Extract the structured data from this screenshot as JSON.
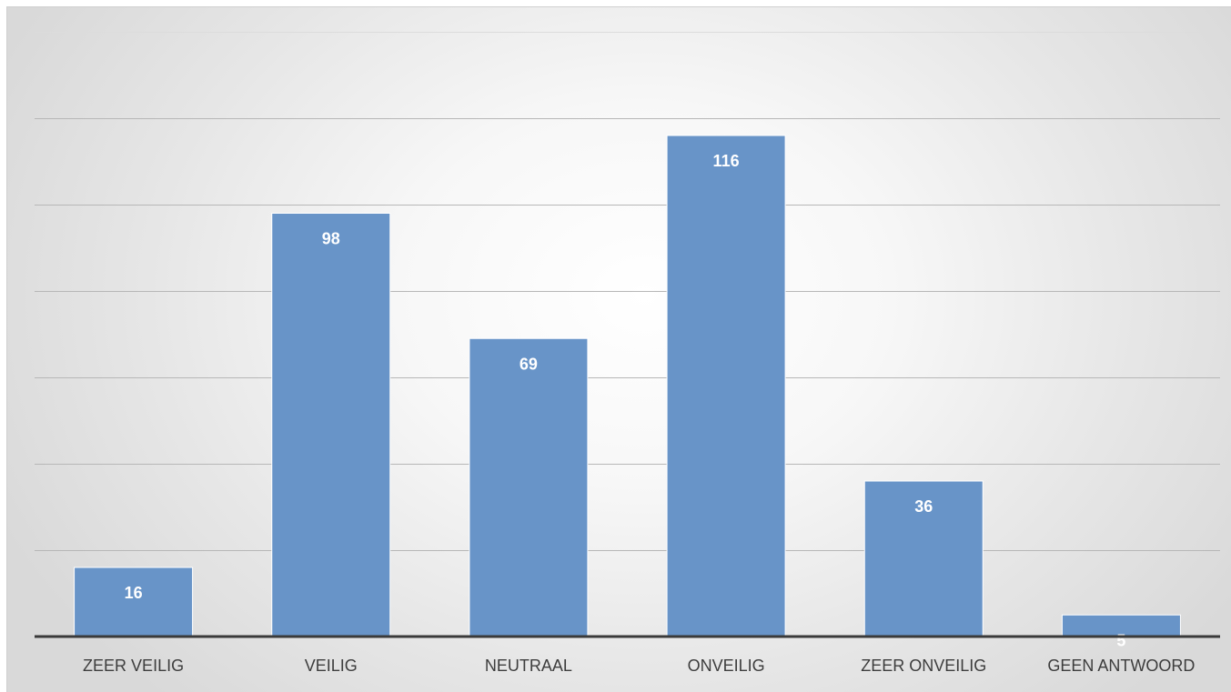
{
  "chart_data": {
    "type": "bar",
    "title": "",
    "xlabel": "",
    "ylabel": "",
    "categories": [
      "ZEER VEILIG",
      "VEILIG",
      "NEUTRAAL",
      "ONVEILIG",
      "ZEER ONVEILIG",
      "GEEN ANTWOORD"
    ],
    "values": [
      16,
      98,
      69,
      116,
      36,
      5
    ],
    "ylim": [
      0,
      140
    ],
    "grid": true,
    "legend": "none",
    "bar_color": "#6894c8",
    "data_label_color": "#ffffff"
  }
}
